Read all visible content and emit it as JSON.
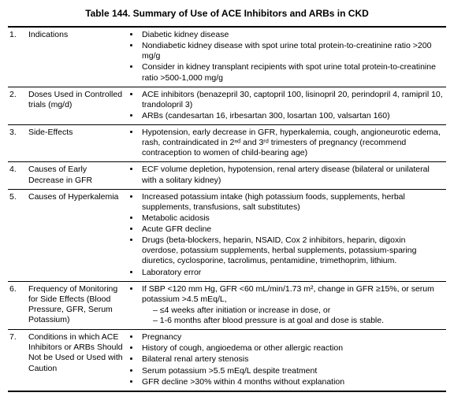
{
  "title": "Table 144. Summary of Use of ACE Inhibitors and ARBs in CKD",
  "rows": [
    {
      "num": "1.",
      "label": "Indications",
      "bullets": [
        "Diabetic kidney disease",
        "Nondiabetic kidney disease with spot urine total protein-to-creatinine ratio >200 mg/g",
        "Consider in kidney transplant recipients with spot urine total protein-to-creatinine ratio >500-1,000 mg/g"
      ]
    },
    {
      "num": "2.",
      "label": "Doses Used in Controlled trials (mg/d)",
      "bullets": [
        "ACE inhibitors (benazepril 30, captopril 100, lisinopril 20, perindopril 4, ramipril 10, trandolopril 3)",
        "ARBs (candesartan 16, irbesartan 300, losartan 100, valsartan 160)"
      ]
    },
    {
      "num": "3.",
      "label": "Side-Effects",
      "bullets": [
        "Hypotension, early decrease in GFR, hyperkalemia, cough, angioneurotic edema, rash, contraindicated in 2ⁿᵈ and 3ʳᵈ trimesters of pregnancy (recommend contraception to women of child-bearing age)"
      ]
    },
    {
      "num": "4.",
      "label": "Causes of Early Decrease in GFR",
      "bullets": [
        "ECF volume depletion, hypotension, renal artery disease (bilateral or unilateral with a solitary kidney)"
      ]
    },
    {
      "num": "5.",
      "label": "Causes of Hyperkalemia",
      "bullets": [
        "Increased potassium intake (high potassium foods, supplements, herbal supplements, transfusions, salt substitutes)",
        "Metabolic acidosis",
        "Acute GFR decline",
        "Drugs (beta-blockers, heparin, NSAID, Cox 2 inhibitors, heparin, digoxin overdose, potassium supplements, herbal supplements, potassium-sparing diuretics, cyclosporine, tacrolimus, pentamidine, trimethoprim, lithium.",
        "Laboratory error"
      ]
    },
    {
      "num": "6.",
      "label": "Frequency of Monitoring for Side Effects (Blood Pressure, GFR, Serum Potassium)",
      "bullets": [
        "If SBP <120 mm Hg, GFR <60 mL/min/1.73 m², change in GFR ≥15%, or serum potassium >4.5 mEq/L,"
      ],
      "dashes": [
        "≤4 weeks after initiation or increase in dose, or",
        "1-6 months after blood pressure is at goal and dose is stable."
      ]
    },
    {
      "num": "7.",
      "label": "Conditions in which ACE Inhibitors or ARBs Should Not be Used or Used with Caution",
      "bullets": [
        "Pregnancy",
        "History of cough, angioedema or other allergic reaction",
        "Bilateral renal artery stenosis",
        "Serum potassium >5.5 mEq/L despite treatment",
        "GFR decline >30% within 4 months without explanation"
      ]
    }
  ]
}
